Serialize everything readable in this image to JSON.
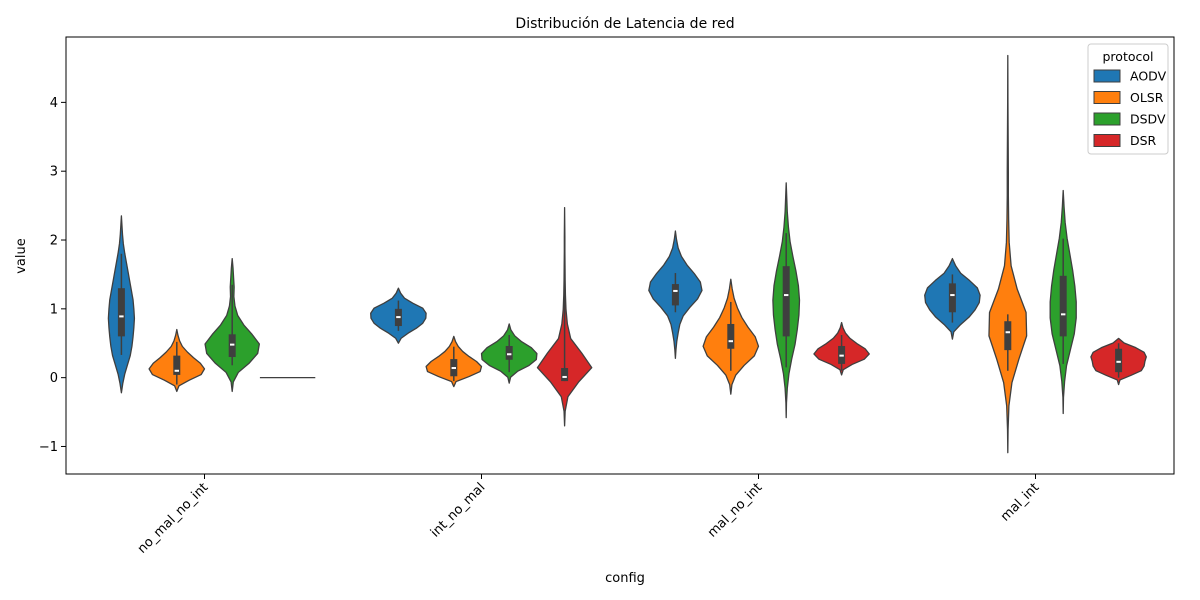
{
  "chart_data": {
    "type": "violin",
    "title": "Distribución de Latencia de red",
    "xlabel": "config",
    "ylabel": "value",
    "ylim": [
      -1.4,
      4.95
    ],
    "yticks": [
      -1,
      0,
      1,
      2,
      3,
      4
    ],
    "categories": [
      "no_mal_no_int",
      "int_no_mal",
      "mal_no_int",
      "mal_int"
    ],
    "legend": {
      "title": "protocol",
      "position": "top-right"
    },
    "series": [
      {
        "name": "AODV",
        "color": "#1f77b4",
        "violins": [
          {
            "min": -0.22,
            "max": 2.35,
            "q1": 0.6,
            "median": 0.89,
            "q3": 1.3,
            "wlo": 0.33,
            "whi": 1.8,
            "profile": [
              0.05,
              0.12,
              0.22,
              0.32,
              0.38,
              0.42,
              0.45,
              0.47,
              0.45,
              0.42,
              0.36,
              0.3,
              0.24,
              0.18,
              0.12,
              0.07,
              0.04,
              0.02
            ]
          },
          {
            "min": 0.5,
            "max": 1.3,
            "q1": 0.75,
            "median": 0.88,
            "q3": 1.0,
            "wlo": 0.68,
            "whi": 1.12,
            "profile": [
              0.1,
              0.35,
              0.65,
              0.88,
              0.99,
              1.0,
              0.88,
              0.52,
              0.22,
              0.08
            ]
          },
          {
            "min": 0.28,
            "max": 2.13,
            "q1": 1.05,
            "median": 1.26,
            "q3": 1.36,
            "wlo": 0.95,
            "whi": 1.52,
            "profile": [
              0.02,
              0.05,
              0.1,
              0.16,
              0.28,
              0.52,
              0.8,
              0.96,
              0.9,
              0.68,
              0.42,
              0.22,
              0.1,
              0.04
            ]
          },
          {
            "min": 0.56,
            "max": 1.73,
            "q1": 0.95,
            "median": 1.2,
            "q3": 1.37,
            "wlo": 0.8,
            "whi": 1.5,
            "profile": [
              0.05,
              0.3,
              0.6,
              0.82,
              0.97,
              1.0,
              0.9,
              0.62,
              0.3,
              0.12
            ]
          }
        ]
      },
      {
        "name": "OLSR",
        "color": "#ff7f0e",
        "violins": [
          {
            "min": -0.2,
            "max": 0.7,
            "q1": 0.04,
            "median": 0.1,
            "q3": 0.32,
            "wlo": -0.1,
            "whi": 0.52,
            "profile": [
              0.08,
              0.45,
              0.88,
              1.0,
              0.85,
              0.6,
              0.38,
              0.2,
              0.1,
              0.04
            ]
          },
          {
            "min": -0.13,
            "max": 0.6,
            "q1": 0.02,
            "median": 0.14,
            "q3": 0.27,
            "wlo": -0.05,
            "whi": 0.45,
            "profile": [
              0.08,
              0.55,
              0.95,
              1.0,
              0.82,
              0.55,
              0.32,
              0.16,
              0.06
            ]
          },
          {
            "min": -0.24,
            "max": 1.43,
            "q1": 0.42,
            "median": 0.53,
            "q3": 0.78,
            "wlo": 0.1,
            "whi": 1.1,
            "profile": [
              0.04,
              0.18,
              0.48,
              0.85,
              1.0,
              0.88,
              0.62,
              0.4,
              0.24,
              0.12,
              0.05
            ]
          },
          {
            "min": -1.09,
            "max": 4.68,
            "q1": 0.4,
            "median": 0.66,
            "q3": 0.82,
            "wlo": 0.1,
            "whi": 0.92,
            "profile": [
              0.01,
              0.04,
              0.15,
              0.4,
              0.68,
              0.66,
              0.34,
              0.12,
              0.05,
              0.03,
              0.02,
              0.02,
              0.015,
              0.01,
              0.005,
              0.003
            ]
          }
        ]
      },
      {
        "name": "DSDV",
        "color": "#2ca02c",
        "violins": [
          {
            "min": -0.2,
            "max": 1.73,
            "q1": 0.3,
            "median": 0.48,
            "q3": 0.63,
            "wlo": 0.18,
            "whi": 1.35,
            "profile": [
              0.04,
              0.22,
              0.62,
              0.92,
              0.98,
              0.72,
              0.42,
              0.2,
              0.1,
              0.06,
              0.07,
              0.05,
              0.03
            ]
          },
          {
            "min": -0.08,
            "max": 0.78,
            "q1": 0.26,
            "median": 0.34,
            "q3": 0.46,
            "wlo": 0.08,
            "whi": 0.62,
            "profile": [
              0.05,
              0.3,
              0.72,
              0.98,
              1.0,
              0.8,
              0.45,
              0.2,
              0.06
            ]
          },
          {
            "min": -0.58,
            "max": 2.83,
            "q1": 0.6,
            "median": 1.2,
            "q3": 1.62,
            "wlo": 0.15,
            "whi": 2.1,
            "profile": [
              0.01,
              0.04,
              0.1,
              0.2,
              0.32,
              0.4,
              0.46,
              0.48,
              0.44,
              0.35,
              0.24,
              0.14,
              0.08,
              0.04,
              0.02
            ]
          },
          {
            "min": -0.52,
            "max": 2.72,
            "q1": 0.6,
            "median": 0.92,
            "q3": 1.48,
            "wlo": 0.2,
            "whi": 2.02,
            "profile": [
              0.01,
              0.05,
              0.12,
              0.26,
              0.4,
              0.47,
              0.47,
              0.42,
              0.34,
              0.24,
              0.14,
              0.07,
              0.03
            ]
          }
        ]
      },
      {
        "name": "DSR",
        "color": "#d62728",
        "violins": [
          {
            "min": 0.0,
            "max": 0.0,
            "q1": 0.0,
            "median": 0.0,
            "q3": 0.0,
            "wlo": 0.0,
            "whi": 0.0,
            "profile": []
          },
          {
            "min": -0.7,
            "max": 2.47,
            "q1": -0.05,
            "median": 0.01,
            "q3": 0.14,
            "wlo": -0.05,
            "whi": 1.5,
            "profile": [
              0.02,
              0.12,
              0.5,
              0.98,
              0.62,
              0.22,
              0.1,
              0.05,
              0.03,
              0.02,
              0.015,
              0.01,
              0.01,
              0.005
            ]
          },
          {
            "min": 0.04,
            "max": 0.8,
            "q1": 0.2,
            "median": 0.32,
            "q3": 0.46,
            "wlo": 0.1,
            "whi": 0.62,
            "profile": [
              0.06,
              0.38,
              0.82,
              1.0,
              0.85,
              0.55,
              0.3,
              0.14,
              0.05
            ]
          },
          {
            "min": -0.1,
            "max": 0.57,
            "q1": 0.08,
            "median": 0.23,
            "q3": 0.42,
            "wlo": 0.0,
            "whi": 0.5,
            "profile": [
              0.05,
              0.45,
              0.82,
              0.92,
              0.95,
              1.0,
              0.92,
              0.62,
              0.2
            ]
          }
        ]
      }
    ]
  }
}
